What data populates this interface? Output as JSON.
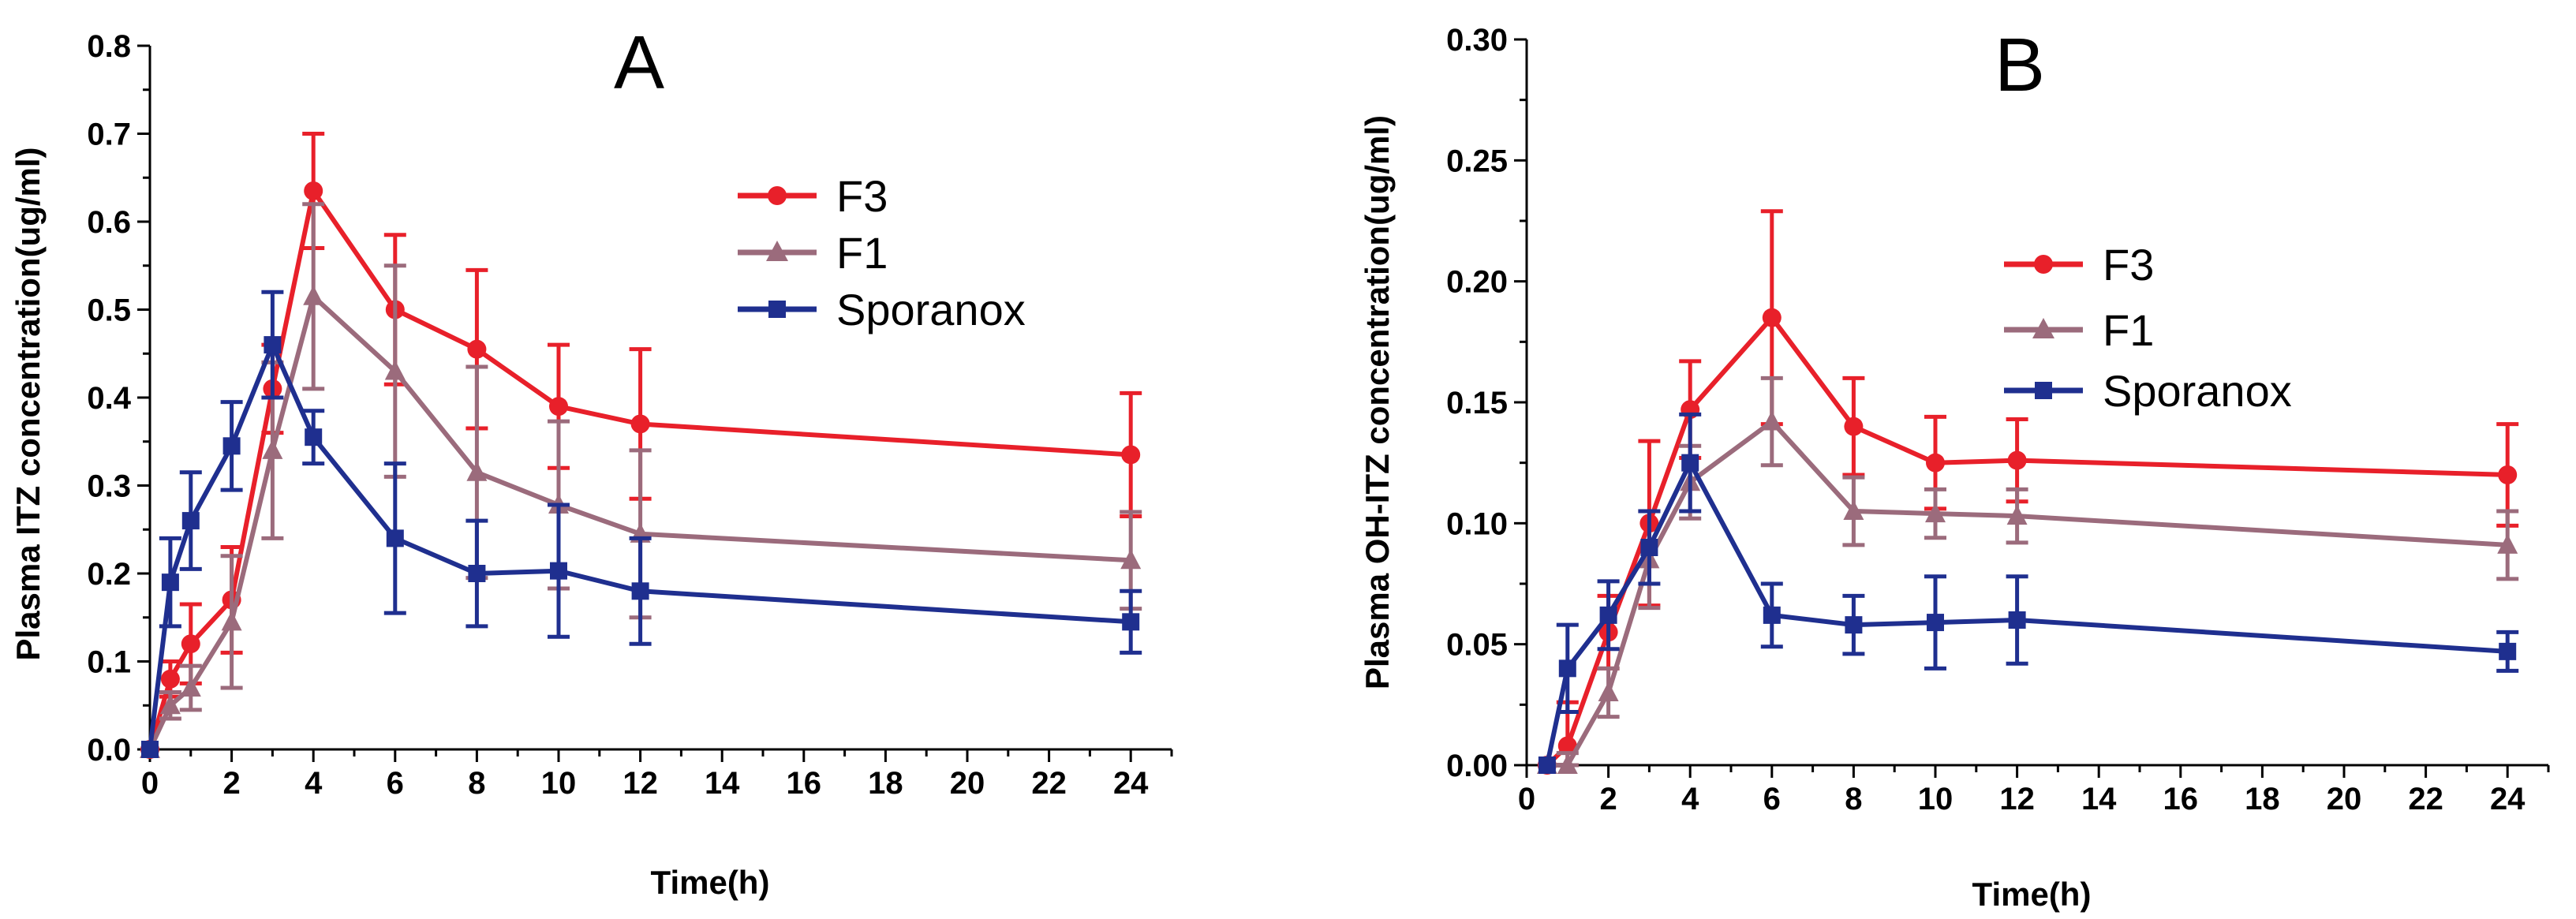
{
  "colors": {
    "F3": "#e8202a",
    "F1": "#9b6b7c",
    "Sporanox": "#1f2f8f",
    "axis": "#000000"
  },
  "chart_data": [
    {
      "type": "line",
      "panel_label": "A",
      "xlabel": "Time(h)",
      "ylabel": "Plasma ITZ concentration(ug/ml)",
      "xlim": [
        0,
        25
      ],
      "ylim": [
        0,
        0.8
      ],
      "x_ticks": [
        0,
        2,
        4,
        6,
        8,
        10,
        12,
        14,
        16,
        18,
        20,
        22,
        24
      ],
      "y_ticks": [
        0.0,
        0.1,
        0.2,
        0.3,
        0.4,
        0.5,
        0.6,
        0.7,
        0.8
      ],
      "y_tick_labels": [
        "0.0",
        "0.1",
        "0.2",
        "0.3",
        "0.4",
        "0.5",
        "0.6",
        "0.7",
        "0.8"
      ],
      "legend": [
        "F3",
        "F1",
        "Sporanox"
      ],
      "legend_position": "top-right",
      "series": [
        {
          "name": "F3",
          "marker": "circle",
          "x": [
            0,
            0.5,
            1,
            2,
            3,
            4,
            6,
            8,
            10,
            12,
            24
          ],
          "y": [
            0.0,
            0.08,
            0.12,
            0.17,
            0.41,
            0.635,
            0.5,
            0.455,
            0.39,
            0.37,
            0.335
          ],
          "err": [
            0.0,
            0.02,
            0.045,
            0.06,
            0.05,
            0.065,
            0.085,
            0.09,
            0.07,
            0.085,
            0.07
          ]
        },
        {
          "name": "F1",
          "marker": "triangle",
          "x": [
            0,
            0.5,
            1,
            2,
            3,
            4,
            6,
            8,
            10,
            12,
            24
          ],
          "y": [
            0.0,
            0.05,
            0.07,
            0.145,
            0.34,
            0.515,
            0.43,
            0.315,
            0.278,
            0.245,
            0.215
          ],
          "err": [
            0.0,
            0.015,
            0.025,
            0.075,
            0.1,
            0.105,
            0.12,
            0.12,
            0.095,
            0.095,
            0.055
          ]
        },
        {
          "name": "Sporanox",
          "marker": "square",
          "x": [
            0,
            0.5,
            1,
            2,
            3,
            4,
            6,
            8,
            10,
            12,
            24
          ],
          "y": [
            0.0,
            0.19,
            0.26,
            0.345,
            0.46,
            0.355,
            0.24,
            0.2,
            0.203,
            0.18,
            0.145
          ],
          "err": [
            0.0,
            0.05,
            0.055,
            0.05,
            0.06,
            0.03,
            0.085,
            0.06,
            0.075,
            0.06,
            0.035
          ]
        }
      ]
    },
    {
      "type": "line",
      "panel_label": "B",
      "xlabel": "Time(h)",
      "ylabel": "Plasma OH-ITZ concentration(ug/ml)",
      "xlim": [
        0,
        25
      ],
      "ylim": [
        0,
        0.3
      ],
      "x_ticks": [
        0,
        2,
        4,
        6,
        8,
        10,
        12,
        14,
        16,
        18,
        20,
        22,
        24
      ],
      "y_ticks": [
        0.0,
        0.05,
        0.1,
        0.15,
        0.2,
        0.25,
        0.3
      ],
      "y_tick_labels": [
        "0.00",
        "0.05",
        "0.10",
        "0.15",
        "0.20",
        "0.25",
        "0.30"
      ],
      "legend": [
        "F3",
        "F1",
        "Sporanox"
      ],
      "legend_position": "top-right",
      "series": [
        {
          "name": "F3",
          "marker": "circle",
          "x": [
            0.5,
            1,
            2,
            3,
            4,
            6,
            8,
            10,
            12,
            24
          ],
          "y": [
            0.0,
            0.008,
            0.055,
            0.1,
            0.147,
            0.185,
            0.14,
            0.125,
            0.126,
            0.12
          ],
          "err": [
            0.0,
            0.018,
            0.015,
            0.034,
            0.02,
            0.044,
            0.02,
            0.019,
            0.017,
            0.021
          ]
        },
        {
          "name": "F1",
          "marker": "triangle",
          "x": [
            0.5,
            1,
            2,
            3,
            4,
            6,
            8,
            10,
            12,
            24
          ],
          "y": [
            0.0,
            0.0,
            0.03,
            0.085,
            0.117,
            0.142,
            0.105,
            0.104,
            0.103,
            0.091
          ],
          "err": [
            0.0,
            0.005,
            0.01,
            0.02,
            0.015,
            0.018,
            0.014,
            0.01,
            0.011,
            0.014
          ]
        },
        {
          "name": "Sporanox",
          "marker": "square",
          "x": [
            0.5,
            1,
            2,
            3,
            4,
            6,
            8,
            10,
            12,
            24
          ],
          "y": [
            0.0,
            0.04,
            0.062,
            0.09,
            0.125,
            0.062,
            0.058,
            0.059,
            0.06,
            0.047
          ],
          "err": [
            0.0,
            0.018,
            0.014,
            0.015,
            0.02,
            0.013,
            0.012,
            0.019,
            0.018,
            0.008
          ]
        }
      ]
    }
  ]
}
